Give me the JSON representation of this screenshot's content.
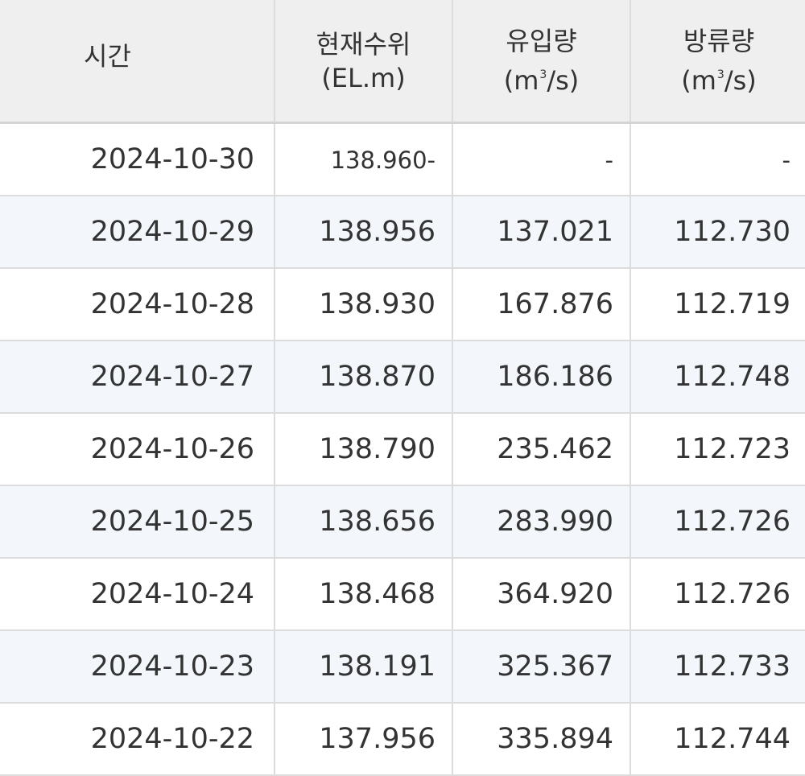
{
  "table": {
    "headers": {
      "time": "시간",
      "level_line1": "현재수위",
      "level_line2": "(EL.m)",
      "inflow_line1": "유입량",
      "inflow_unit_pre": "(m",
      "inflow_unit_sup": "3",
      "inflow_unit_post": "/s)",
      "outflow_line1": "방류량",
      "outflow_unit_pre": "(m",
      "outflow_unit_sup": "3",
      "outflow_unit_post": "/s)"
    },
    "rows": [
      {
        "date": "2024-10-30",
        "level": "138.960",
        "level_suffix": "-",
        "inflow": "-",
        "outflow": "-"
      },
      {
        "date": "2024-10-29",
        "level": "138.956",
        "inflow": "137.021",
        "outflow": "112.730"
      },
      {
        "date": "2024-10-28",
        "level": "138.930",
        "inflow": "167.876",
        "outflow": "112.719"
      },
      {
        "date": "2024-10-27",
        "level": "138.870",
        "inflow": "186.186",
        "outflow": "112.748"
      },
      {
        "date": "2024-10-26",
        "level": "138.790",
        "inflow": "235.462",
        "outflow": "112.723"
      },
      {
        "date": "2024-10-25",
        "level": "138.656",
        "inflow": "283.990",
        "outflow": "112.726"
      },
      {
        "date": "2024-10-24",
        "level": "138.468",
        "inflow": "364.920",
        "outflow": "112.726"
      },
      {
        "date": "2024-10-23",
        "level": "138.191",
        "inflow": "325.367",
        "outflow": "112.733"
      },
      {
        "date": "2024-10-22",
        "level": "137.956",
        "inflow": "335.894",
        "outflow": "112.744"
      }
    ]
  }
}
